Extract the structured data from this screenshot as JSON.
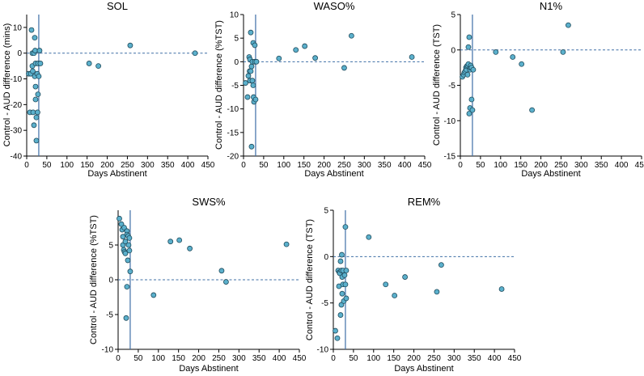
{
  "chart_data": [
    {
      "type": "scatter",
      "title": "SOL",
      "xlabel": "Days Abstinent",
      "ylabel": "Control - AUD difference (mins)",
      "xlim": [
        0,
        450
      ],
      "ylim": [
        -40,
        15
      ],
      "x_ticks": [
        "0",
        "50",
        "100",
        "150",
        "200",
        "250",
        "300",
        "350",
        "400",
        "450"
      ],
      "y_ticks": [
        "10",
        "0",
        "-10",
        "-20",
        "-30",
        "-40"
      ],
      "y_tick_values": [
        10,
        0,
        -10,
        -20,
        -30,
        -40
      ],
      "reference_x": 30,
      "zero_line": 0,
      "points": [
        {
          "x": 5,
          "y": -8
        },
        {
          "x": 8,
          "y": -23
        },
        {
          "x": 10,
          "y": -8
        },
        {
          "x": 12,
          "y": 9
        },
        {
          "x": 14,
          "y": 0
        },
        {
          "x": 14,
          "y": -5
        },
        {
          "x": 15,
          "y": -7
        },
        {
          "x": 16,
          "y": -23
        },
        {
          "x": 18,
          "y": 0
        },
        {
          "x": 18,
          "y": -28
        },
        {
          "x": 20,
          "y": 6
        },
        {
          "x": 20,
          "y": -9
        },
        {
          "x": 21,
          "y": 1
        },
        {
          "x": 22,
          "y": -4
        },
        {
          "x": 22,
          "y": -13
        },
        {
          "x": 22,
          "y": -18
        },
        {
          "x": 24,
          "y": -25
        },
        {
          "x": 24,
          "y": -34
        },
        {
          "x": 26,
          "y": -8
        },
        {
          "x": 27,
          "y": -23
        },
        {
          "x": 28,
          "y": -16
        },
        {
          "x": 28,
          "y": -4
        },
        {
          "x": 30,
          "y": -9
        },
        {
          "x": 32,
          "y": 1
        },
        {
          "x": 34,
          "y": -4
        },
        {
          "x": 155,
          "y": -4
        },
        {
          "x": 178,
          "y": -5
        },
        {
          "x": 257,
          "y": 3
        },
        {
          "x": 418,
          "y": 0
        }
      ]
    },
    {
      "type": "scatter",
      "title": "WASO%",
      "xlabel": "Days Abstinent",
      "ylabel": "Control - AUD difference (%TST)",
      "xlim": [
        0,
        450
      ],
      "ylim": [
        -20,
        10
      ],
      "x_ticks": [
        "0",
        "50",
        "100",
        "150",
        "200",
        "250",
        "300",
        "350",
        "400",
        "450"
      ],
      "y_ticks": [
        "10",
        "5",
        "0",
        "-5",
        "-10",
        "-15",
        "-20"
      ],
      "y_tick_values": [
        10,
        5,
        0,
        -5,
        -10,
        -15,
        -20
      ],
      "reference_x": 30,
      "zero_line": 0,
      "points": [
        {
          "x": 5,
          "y": -4.5
        },
        {
          "x": 10,
          "y": -7.5
        },
        {
          "x": 12,
          "y": -3
        },
        {
          "x": 14,
          "y": 1
        },
        {
          "x": 15,
          "y": -2
        },
        {
          "x": 16,
          "y": 0.5
        },
        {
          "x": 16,
          "y": -4
        },
        {
          "x": 18,
          "y": 6.2
        },
        {
          "x": 18,
          "y": -2
        },
        {
          "x": 20,
          "y": -18
        },
        {
          "x": 20,
          "y": -1
        },
        {
          "x": 22,
          "y": -4
        },
        {
          "x": 22,
          "y": 0
        },
        {
          "x": 24,
          "y": -5
        },
        {
          "x": 24,
          "y": 4
        },
        {
          "x": 25,
          "y": -7.5
        },
        {
          "x": 26,
          "y": -8.5
        },
        {
          "x": 28,
          "y": 0
        },
        {
          "x": 28,
          "y": 3.5
        },
        {
          "x": 30,
          "y": -8
        },
        {
          "x": 32,
          "y": 0
        },
        {
          "x": 88,
          "y": 0.7
        },
        {
          "x": 130,
          "y": 2.5
        },
        {
          "x": 152,
          "y": 3.3
        },
        {
          "x": 178,
          "y": 0.8
        },
        {
          "x": 250,
          "y": -1.3
        },
        {
          "x": 268,
          "y": 5.5
        },
        {
          "x": 418,
          "y": 1
        }
      ]
    },
    {
      "type": "scatter",
      "title": "N1%",
      "xlabel": "Days Abstinent",
      "ylabel": "Control - AUD difference (TST)",
      "xlim": [
        0,
        450
      ],
      "ylim": [
        -15,
        5
      ],
      "x_ticks": [
        "0",
        "50",
        "100",
        "150",
        "200",
        "250",
        "300",
        "350",
        "400",
        "450"
      ],
      "y_ticks": [
        "5",
        "0",
        "-5",
        "-10",
        "-15"
      ],
      "y_tick_values": [
        5,
        0,
        -5,
        -10,
        -15
      ],
      "reference_x": 30,
      "zero_line": 0,
      "points": [
        {
          "x": 5,
          "y": -3.8
        },
        {
          "x": 8,
          "y": -3.5
        },
        {
          "x": 10,
          "y": -3.2
        },
        {
          "x": 12,
          "y": -3
        },
        {
          "x": 14,
          "y": -2.5
        },
        {
          "x": 15,
          "y": -2.8
        },
        {
          "x": 16,
          "y": -2.3
        },
        {
          "x": 18,
          "y": -2.2
        },
        {
          "x": 18,
          "y": -3.5
        },
        {
          "x": 20,
          "y": -2
        },
        {
          "x": 20,
          "y": 0.4
        },
        {
          "x": 22,
          "y": -9
        },
        {
          "x": 22,
          "y": 1.8
        },
        {
          "x": 24,
          "y": -2.8
        },
        {
          "x": 24,
          "y": -8.2
        },
        {
          "x": 25,
          "y": -2.5
        },
        {
          "x": 26,
          "y": -2.2
        },
        {
          "x": 28,
          "y": -2.5
        },
        {
          "x": 28,
          "y": -7
        },
        {
          "x": 30,
          "y": -8.5
        },
        {
          "x": 32,
          "y": -2.8
        },
        {
          "x": 88,
          "y": -0.3
        },
        {
          "x": 130,
          "y": -1
        },
        {
          "x": 152,
          "y": -2
        },
        {
          "x": 178,
          "y": -8.5
        },
        {
          "x": 255,
          "y": -0.3
        },
        {
          "x": 268,
          "y": 3.5
        }
      ]
    },
    {
      "type": "scatter",
      "title": "SWS%",
      "xlabel": "Days Abstinent",
      "ylabel": "Control - AUD difference (%TST)",
      "xlim": [
        0,
        450
      ],
      "ylim": [
        -10,
        10
      ],
      "x_ticks": [
        "0",
        "50",
        "100",
        "150",
        "200",
        "250",
        "300",
        "350",
        "400",
        "450"
      ],
      "y_ticks": [
        "5",
        "0",
        "-5",
        "-10"
      ],
      "y_tick_values": [
        5,
        0,
        -5,
        -10
      ],
      "reference_x": 30,
      "zero_line": 0,
      "points": [
        {
          "x": 3,
          "y": 8.8
        },
        {
          "x": 8,
          "y": 8
        },
        {
          "x": 10,
          "y": 7.2
        },
        {
          "x": 12,
          "y": 6.2
        },
        {
          "x": 12,
          "y": 5
        },
        {
          "x": 14,
          "y": 4.3
        },
        {
          "x": 15,
          "y": 7.5
        },
        {
          "x": 16,
          "y": 4
        },
        {
          "x": 18,
          "y": 5.5
        },
        {
          "x": 18,
          "y": 3.8
        },
        {
          "x": 20,
          "y": -5.5
        },
        {
          "x": 22,
          "y": 7
        },
        {
          "x": 22,
          "y": 6.5
        },
        {
          "x": 22,
          "y": -1
        },
        {
          "x": 24,
          "y": 2.8
        },
        {
          "x": 25,
          "y": 6.3
        },
        {
          "x": 26,
          "y": 5
        },
        {
          "x": 28,
          "y": 4.2
        },
        {
          "x": 28,
          "y": 6
        },
        {
          "x": 30,
          "y": 1.2
        },
        {
          "x": 88,
          "y": -2.2
        },
        {
          "x": 130,
          "y": 5.5
        },
        {
          "x": 152,
          "y": 5.7
        },
        {
          "x": 178,
          "y": 4.5
        },
        {
          "x": 257,
          "y": 1.3
        },
        {
          "x": 268,
          "y": -0.3
        },
        {
          "x": 418,
          "y": 5.1
        }
      ]
    },
    {
      "type": "scatter",
      "title": "REM%",
      "xlabel": "Days Abstinent",
      "ylabel": "Control - AUD difference (TST)",
      "xlim": [
        0,
        450
      ],
      "ylim": [
        -10,
        5
      ],
      "x_ticks": [
        "0",
        "50",
        "100",
        "150",
        "200",
        "250",
        "300",
        "350",
        "400",
        "450"
      ],
      "y_ticks": [
        "5",
        "0",
        "-5",
        "-10"
      ],
      "y_tick_values": [
        5,
        0,
        -5,
        -10
      ],
      "reference_x": 30,
      "zero_line": 0,
      "points": [
        {
          "x": 5,
          "y": -8
        },
        {
          "x": 10,
          "y": -8.8
        },
        {
          "x": 12,
          "y": -1.5
        },
        {
          "x": 14,
          "y": -3.2
        },
        {
          "x": 15,
          "y": -1.7
        },
        {
          "x": 16,
          "y": -1.8
        },
        {
          "x": 18,
          "y": -0.5
        },
        {
          "x": 18,
          "y": -6.3
        },
        {
          "x": 20,
          "y": -1.5
        },
        {
          "x": 20,
          "y": -5.2
        },
        {
          "x": 21,
          "y": 0.2
        },
        {
          "x": 22,
          "y": -2.2
        },
        {
          "x": 22,
          "y": -4
        },
        {
          "x": 24,
          "y": -1.5
        },
        {
          "x": 24,
          "y": -3
        },
        {
          "x": 26,
          "y": -4.8
        },
        {
          "x": 28,
          "y": -2
        },
        {
          "x": 30,
          "y": -3
        },
        {
          "x": 30,
          "y": 3.2
        },
        {
          "x": 32,
          "y": -1.5
        },
        {
          "x": 32,
          "y": -4.5
        },
        {
          "x": 88,
          "y": 2.1
        },
        {
          "x": 130,
          "y": -3
        },
        {
          "x": 152,
          "y": -4.2
        },
        {
          "x": 178,
          "y": -2.2
        },
        {
          "x": 257,
          "y": -3.8
        },
        {
          "x": 268,
          "y": -0.9
        },
        {
          "x": 418,
          "y": -3.5
        }
      ]
    }
  ]
}
